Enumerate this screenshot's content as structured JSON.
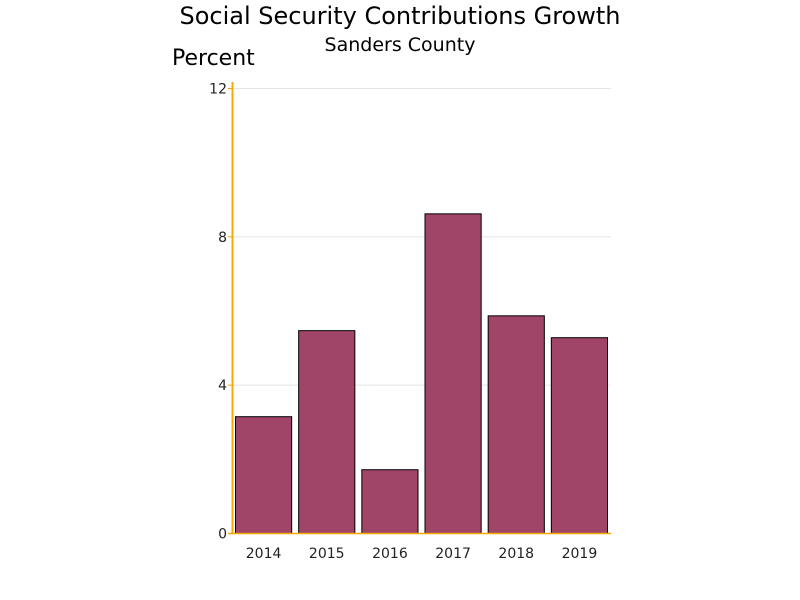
{
  "chart_data": {
    "type": "bar",
    "title": "Social Security Contributions Growth",
    "subtitle": "Sanders County",
    "xlabel": "",
    "ylabel": "Percent",
    "categories": [
      "2014",
      "2015",
      "2016",
      "2017",
      "2018",
      "2019"
    ],
    "values": [
      3.15,
      5.47,
      1.72,
      8.62,
      5.87,
      5.28
    ],
    "ylim": [
      0,
      12
    ],
    "yticks": [
      0,
      4,
      8,
      12
    ],
    "grid": true,
    "legend": "none",
    "colors": {
      "bar": "#a04468",
      "bar_outline": "#000000",
      "axis": "#f5a800",
      "grid": "#e4e4e4"
    }
  }
}
